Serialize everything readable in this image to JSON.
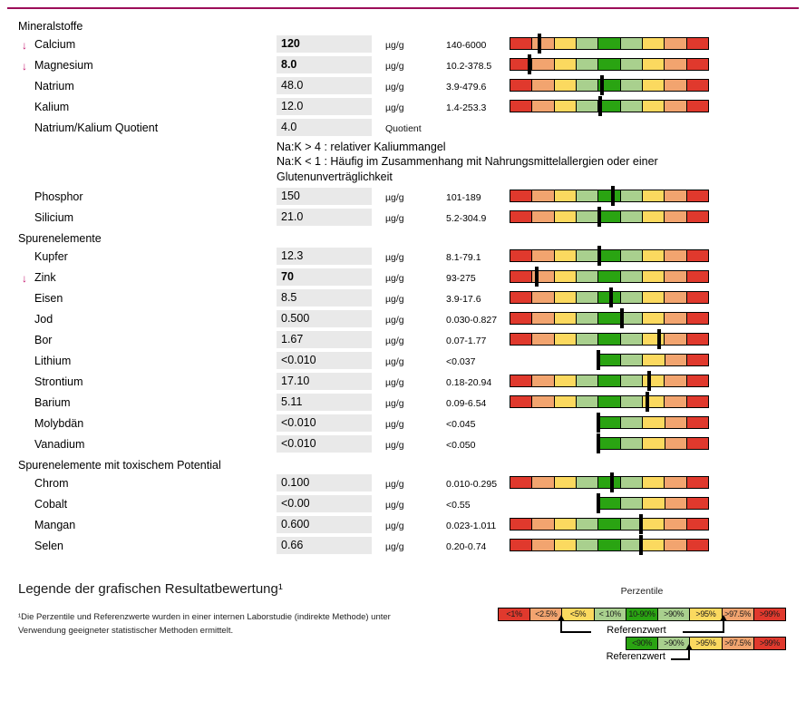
{
  "colors": {
    "top_rule": "#9c0e5a",
    "flag_arrow": "#c4156d",
    "value_box_bg": "#e9e9e9",
    "bar_red": "#e0392d",
    "bar_orange": "#f2a46f",
    "bar_yellow": "#fbd95f",
    "bar_light_green": "#a9d08e",
    "bar_dark_green": "#2aa412"
  },
  "bar_colors": {
    "full": [
      "#e0392d",
      "#f2a46f",
      "#fbd95f",
      "#a9d08e",
      "#2aa412",
      "#a9d08e",
      "#fbd95f",
      "#f2a46f",
      "#e0392d"
    ],
    "half": [
      "#2aa412",
      "#a9d08e",
      "#fbd95f",
      "#f2a46f",
      "#e0392d"
    ]
  },
  "flag_arrow_glyph": "↓",
  "rows": [
    {
      "type": "section",
      "label": "Mineralstoffe"
    },
    {
      "type": "item",
      "label": "Calcium",
      "flag": "low",
      "value": "120",
      "bold": true,
      "unit": "µg/g",
      "range": "140-6000",
      "bar": "full",
      "marker": 0.15
    },
    {
      "type": "item",
      "label": "Magnesium",
      "flag": "low",
      "value": "8.0",
      "bold": true,
      "unit": "µg/g",
      "range": "10.2-378.5",
      "bar": "full",
      "marker": 0.1
    },
    {
      "type": "item",
      "label": "Natrium",
      "value": "48.0",
      "unit": "µg/g",
      "range": "3.9-479.6",
      "bar": "full",
      "marker": 0.465
    },
    {
      "type": "item",
      "label": "Kalium",
      "value": "12.0",
      "unit": "µg/g",
      "range": "1.4-253.3",
      "bar": "full",
      "marker": 0.455
    },
    {
      "type": "item",
      "label": "Natrium/Kalium Quotient",
      "value": "4.0",
      "unit": "Quotient",
      "range": "",
      "bar": null
    },
    {
      "type": "note",
      "lines": [
        "Na:K > 4 : relativer Kaliummangel",
        "Na:K < 1 : Häufig im Zusammenhang mit Nahrungsmittelallergien oder einer Glutenunverträglichkeit"
      ]
    },
    {
      "type": "item",
      "label": "Phosphor",
      "value": "150",
      "unit": "µg/g",
      "range": "101-189",
      "bar": "full",
      "marker": 0.52
    },
    {
      "type": "item",
      "label": "Silicium",
      "value": "21.0",
      "unit": "µg/g",
      "range": "5.2-304.9",
      "bar": "full",
      "marker": 0.45
    },
    {
      "type": "section",
      "label": "Spurenelemente"
    },
    {
      "type": "item",
      "label": "Kupfer",
      "value": "12.3",
      "unit": "µg/g",
      "range": "8.1-79.1",
      "bar": "full",
      "marker": 0.45
    },
    {
      "type": "item",
      "label": "Zink",
      "flag": "low",
      "value": "70",
      "bold": true,
      "unit": "µg/g",
      "range": "93-275",
      "bar": "full",
      "marker": 0.135
    },
    {
      "type": "item",
      "label": "Eisen",
      "value": "8.5",
      "unit": "µg/g",
      "range": "3.9-17.6",
      "bar": "full",
      "marker": 0.51
    },
    {
      "type": "item",
      "label": "Jod",
      "value": "0.500",
      "unit": "µg/g",
      "range": "0.030-0.827",
      "bar": "full",
      "marker": 0.565
    },
    {
      "type": "item",
      "label": "Bor",
      "value": "1.67",
      "unit": "µg/g",
      "range": "0.07-1.77",
      "bar": "full",
      "marker": 0.75
    },
    {
      "type": "item",
      "label": "Lithium",
      "value": "<0.010",
      "unit": "µg/g",
      "range": "<0.037",
      "bar": "half",
      "marker": 0.4444
    },
    {
      "type": "item",
      "label": "Strontium",
      "value": "17.10",
      "unit": "µg/g",
      "range": "0.18-20.94",
      "bar": "full",
      "marker": 0.7
    },
    {
      "type": "item",
      "label": "Barium",
      "value": "5.11",
      "unit": "µg/g",
      "range": "0.09-6.54",
      "bar": "full",
      "marker": 0.69
    },
    {
      "type": "item",
      "label": "Molybdän",
      "value": "<0.010",
      "unit": "µg/g",
      "range": "<0.045",
      "bar": "half",
      "marker": 0.4444
    },
    {
      "type": "item",
      "label": "Vanadium",
      "value": "<0.010",
      "unit": "µg/g",
      "range": "<0.050",
      "bar": "half",
      "marker": 0.4444
    },
    {
      "type": "section",
      "label": "Spurenelemente mit toxischem Potential"
    },
    {
      "type": "item",
      "label": "Chrom",
      "value": "0.100",
      "unit": "µg/g",
      "range": "0.010-0.295",
      "bar": "full",
      "marker": 0.515
    },
    {
      "type": "item",
      "label": "Cobalt",
      "value": "<0.00",
      "unit": "µg/g",
      "range": "<0.55",
      "bar": "half",
      "marker": 0.4444
    },
    {
      "type": "item",
      "label": "Mangan",
      "value": "0.600",
      "unit": "µg/g",
      "range": "0.023-1.011",
      "bar": "full",
      "marker": 0.66
    },
    {
      "type": "item",
      "label": "Selen",
      "value": "0.66",
      "unit": "µg/g",
      "range": "0.20-0.74",
      "bar": "full",
      "marker": 0.66
    }
  ],
  "legend": {
    "heading": "Legende der grafischen Resultatbewertung¹",
    "footnote_lines": [
      "¹Die Perzentile und Referenzwerte wurden in einer internen Laborstudie (indirekte Methode) unter",
      "Verwendung geeigneter statistischer Methoden ermittelt."
    ],
    "percentile_title": "Perzentile",
    "full_bar_labels": [
      "<1%",
      "<2.5%",
      "<5%",
      "< 10%",
      "10-90%",
      ">90%",
      ">95%",
      ">97.5%",
      ">99%"
    ],
    "half_bar_labels": [
      "<90%",
      ">90%",
      ">95%",
      ">97.5%",
      ">99%"
    ],
    "referenzwert_label_full": "Referenzwert",
    "referenzwert_label_half": "Referenzwert"
  }
}
